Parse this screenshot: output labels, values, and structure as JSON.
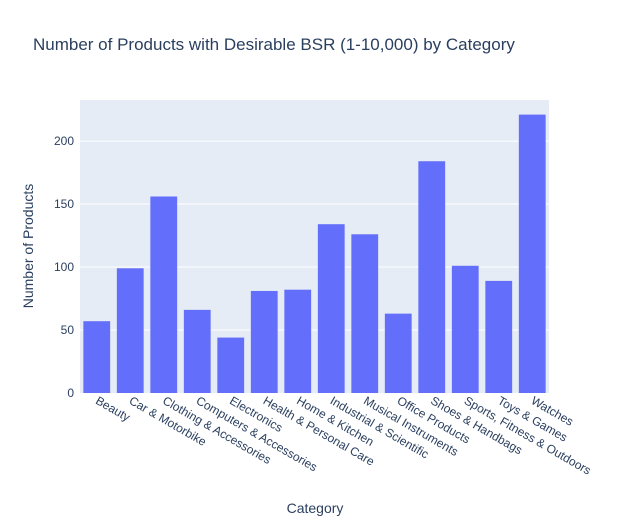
{
  "chart_data": {
    "type": "bar",
    "title": "Number of Products with Desirable BSR (1-10,000) by Category",
    "xlabel": "Category",
    "ylabel": "Number of Products",
    "categories": [
      "Beauty",
      "Car & Motorbike",
      "Clothing & Accessories",
      "Computers & Accessories",
      "Electronics",
      "Health & Personal Care",
      "Home & Kitchen",
      "Industrial & Scientific",
      "Musical Instruments",
      "Office Products",
      "Shoes & Handbags",
      "Sports, Fitness & Outdoors",
      "Toys & Games",
      "Watches"
    ],
    "values": [
      57,
      99,
      156,
      66,
      44,
      81,
      82,
      134,
      126,
      63,
      184,
      101,
      89,
      221
    ],
    "ylim": [
      0,
      232.6
    ],
    "yticks": [
      0,
      50,
      100,
      150,
      200
    ],
    "grid": true,
    "colors": {
      "bar": "#636efa",
      "plot_bg": "#e5ecf6",
      "grid": "#ffffff",
      "text": "#2a3f5f"
    }
  }
}
